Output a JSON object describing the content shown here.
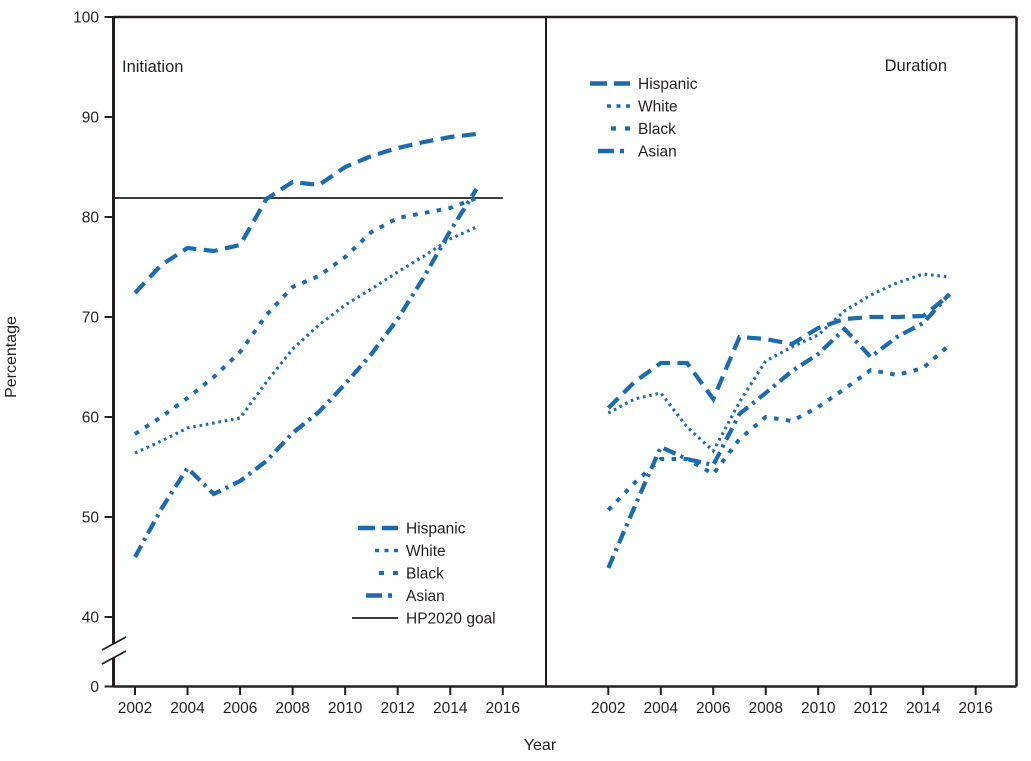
{
  "figure": {
    "background": "#ffffff",
    "colors": {
      "series_line": "#1b6bb0",
      "axis": "#231f20",
      "goal_line": "#231f20",
      "text": "#231f20"
    },
    "axes": {
      "ylabel": "Percentage",
      "xlabel": "Year",
      "y_ticks": [
        100,
        90,
        80,
        70,
        60,
        50,
        40,
        0
      ],
      "x_ticks": [
        2002,
        2004,
        2006,
        2008,
        2010,
        2012,
        2014,
        2016
      ],
      "broken_y_axis": true,
      "ylim_display": [
        40,
        100
      ]
    }
  },
  "chart_data": [
    {
      "type": "line",
      "panel_title": "Initiation",
      "x": [
        2002,
        2003,
        2004,
        2005,
        2006,
        2007,
        2008,
        2009,
        2010,
        2011,
        2012,
        2013,
        2014,
        2015
      ],
      "series": [
        {
          "name": "Hispanic",
          "style": "long-dash",
          "values": [
            72.4,
            75.2,
            76.9,
            76.6,
            77.2,
            81.8,
            83.5,
            83.2,
            85.0,
            86.1,
            86.9,
            87.5,
            88.0,
            88.3
          ]
        },
        {
          "name": "White",
          "style": "dot",
          "values": [
            56.4,
            57.6,
            58.9,
            59.4,
            59.9,
            63.5,
            66.8,
            69.2,
            71.2,
            72.8,
            74.5,
            76.1,
            77.8,
            79.0
          ]
        },
        {
          "name": "Black",
          "style": "square-dash",
          "values": [
            58.3,
            60.0,
            61.9,
            64.0,
            66.5,
            70.2,
            73.0,
            74.1,
            76.0,
            78.5,
            79.9,
            80.4,
            80.9,
            81.9
          ]
        },
        {
          "name": "Asian",
          "style": "dash-dot",
          "values": [
            46.0,
            50.8,
            54.9,
            52.3,
            53.6,
            55.6,
            58.4,
            60.5,
            63.3,
            66.3,
            69.8,
            74.0,
            78.6,
            82.8
          ]
        }
      ],
      "goal": {
        "label": "HP2020 goal",
        "value": 81.9
      },
      "legend": [
        "Hispanic",
        "White",
        "Black",
        "Asian",
        "HP2020 goal"
      ],
      "legend_position": "lower-right-inside"
    },
    {
      "type": "line",
      "panel_title": "Duration",
      "x": [
        2002,
        2003,
        2004,
        2005,
        2006,
        2007,
        2008,
        2009,
        2010,
        2011,
        2012,
        2013,
        2014,
        2015
      ],
      "series": [
        {
          "name": "Hispanic",
          "style": "long-dash",
          "values": [
            60.9,
            63.5,
            65.4,
            65.4,
            61.8,
            68.0,
            67.8,
            67.3,
            68.9,
            69.8,
            70.0,
            70.0,
            70.1,
            72.2
          ]
        },
        {
          "name": "White",
          "style": "dot",
          "values": [
            60.4,
            61.8,
            62.4,
            59.0,
            56.6,
            61.5,
            65.6,
            67.0,
            68.2,
            70.6,
            72.2,
            73.4,
            74.3,
            74.0
          ]
        },
        {
          "name": "Black",
          "style": "square-dash",
          "values": [
            50.7,
            53.4,
            55.8,
            55.8,
            54.3,
            57.8,
            60.0,
            59.6,
            61.0,
            62.8,
            64.7,
            64.2,
            64.9,
            67.2
          ]
        },
        {
          "name": "Asian",
          "style": "dash-dot",
          "values": [
            44.9,
            51.0,
            57.0,
            55.8,
            55.2,
            60.3,
            62.4,
            64.6,
            66.3,
            68.8,
            66.0,
            68.0,
            69.4,
            72.3
          ]
        }
      ],
      "goal": null,
      "legend": [
        "Hispanic",
        "White",
        "Black",
        "Asian"
      ],
      "legend_position": "upper-left-inside"
    }
  ]
}
